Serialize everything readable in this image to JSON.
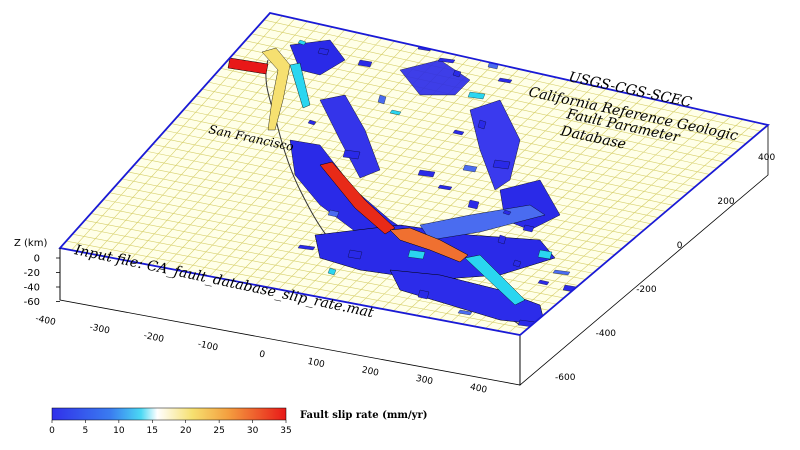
{
  "map": {
    "title_lines": [
      "USGS-CGS-SCEC",
      "California Reference Geologic",
      "Fault Parameter",
      "Database"
    ],
    "place_label": "San Francisco",
    "input_file": "Input file: CA_fault_database_slip_rate.mat",
    "z_axis": {
      "label": "Z (km)",
      "ticks": [
        "0",
        "-20",
        "-40",
        "-60"
      ]
    },
    "x_axis": {
      "ticks": [
        "-400",
        "-300",
        "-200",
        "-100",
        "0",
        "100",
        "200",
        "300",
        "400"
      ]
    },
    "y_axis": {
      "ticks": [
        "400",
        "200",
        "0",
        "-200",
        "-400",
        "-600"
      ]
    },
    "colorbar": {
      "label": "Fault slip rate (mm/yr)",
      "ticks": [
        "0",
        "5",
        "10",
        "15",
        "20",
        "25",
        "30",
        "35"
      ],
      "range": [
        0,
        35
      ]
    },
    "colors": {
      "plane": "#ffffe8",
      "grid": "#d6cf6a",
      "box_edge": "#1a1ad6",
      "low": "#2a2ae8",
      "mid": "#2ad6f0",
      "high": "#e81818"
    }
  }
}
